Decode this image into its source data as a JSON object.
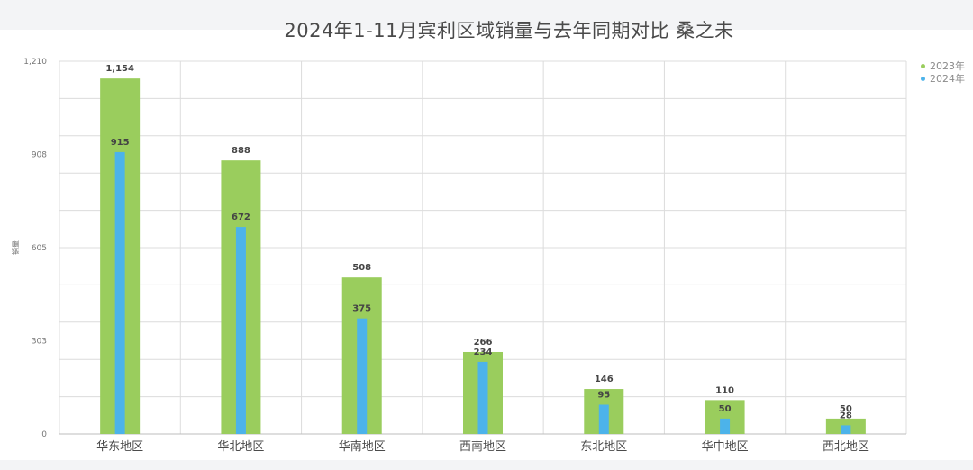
{
  "chart_data": {
    "type": "bar",
    "title": "2024年1-11月宾利区域销量与去年同期对比 桑之未",
    "ylabel": "销量",
    "ylim": [
      0,
      1210
    ],
    "yticks": [
      "0",
      "303",
      "605",
      "908",
      "1,210"
    ],
    "ytick_values": [
      0,
      303,
      605,
      908,
      1210
    ],
    "categories": [
      "华东地区",
      "华北地区",
      "华南地区",
      "西南地区",
      "东北地区",
      "华中地区",
      "西北地区"
    ],
    "series": [
      {
        "name": "2023年",
        "color": "#9acd5d",
        "values": [
          1154,
          888,
          508,
          266,
          146,
          110,
          50
        ],
        "labels": [
          "1,154",
          "888",
          "508",
          "266",
          "146",
          "110",
          "50"
        ]
      },
      {
        "name": "2024年",
        "color": "#4cb3ea",
        "values": [
          915,
          672,
          375,
          234,
          95,
          50,
          28
        ],
        "labels": [
          "915",
          "672",
          "375",
          "234",
          "95",
          "50",
          "28"
        ]
      }
    ],
    "grid": true,
    "legend": "top-right"
  }
}
